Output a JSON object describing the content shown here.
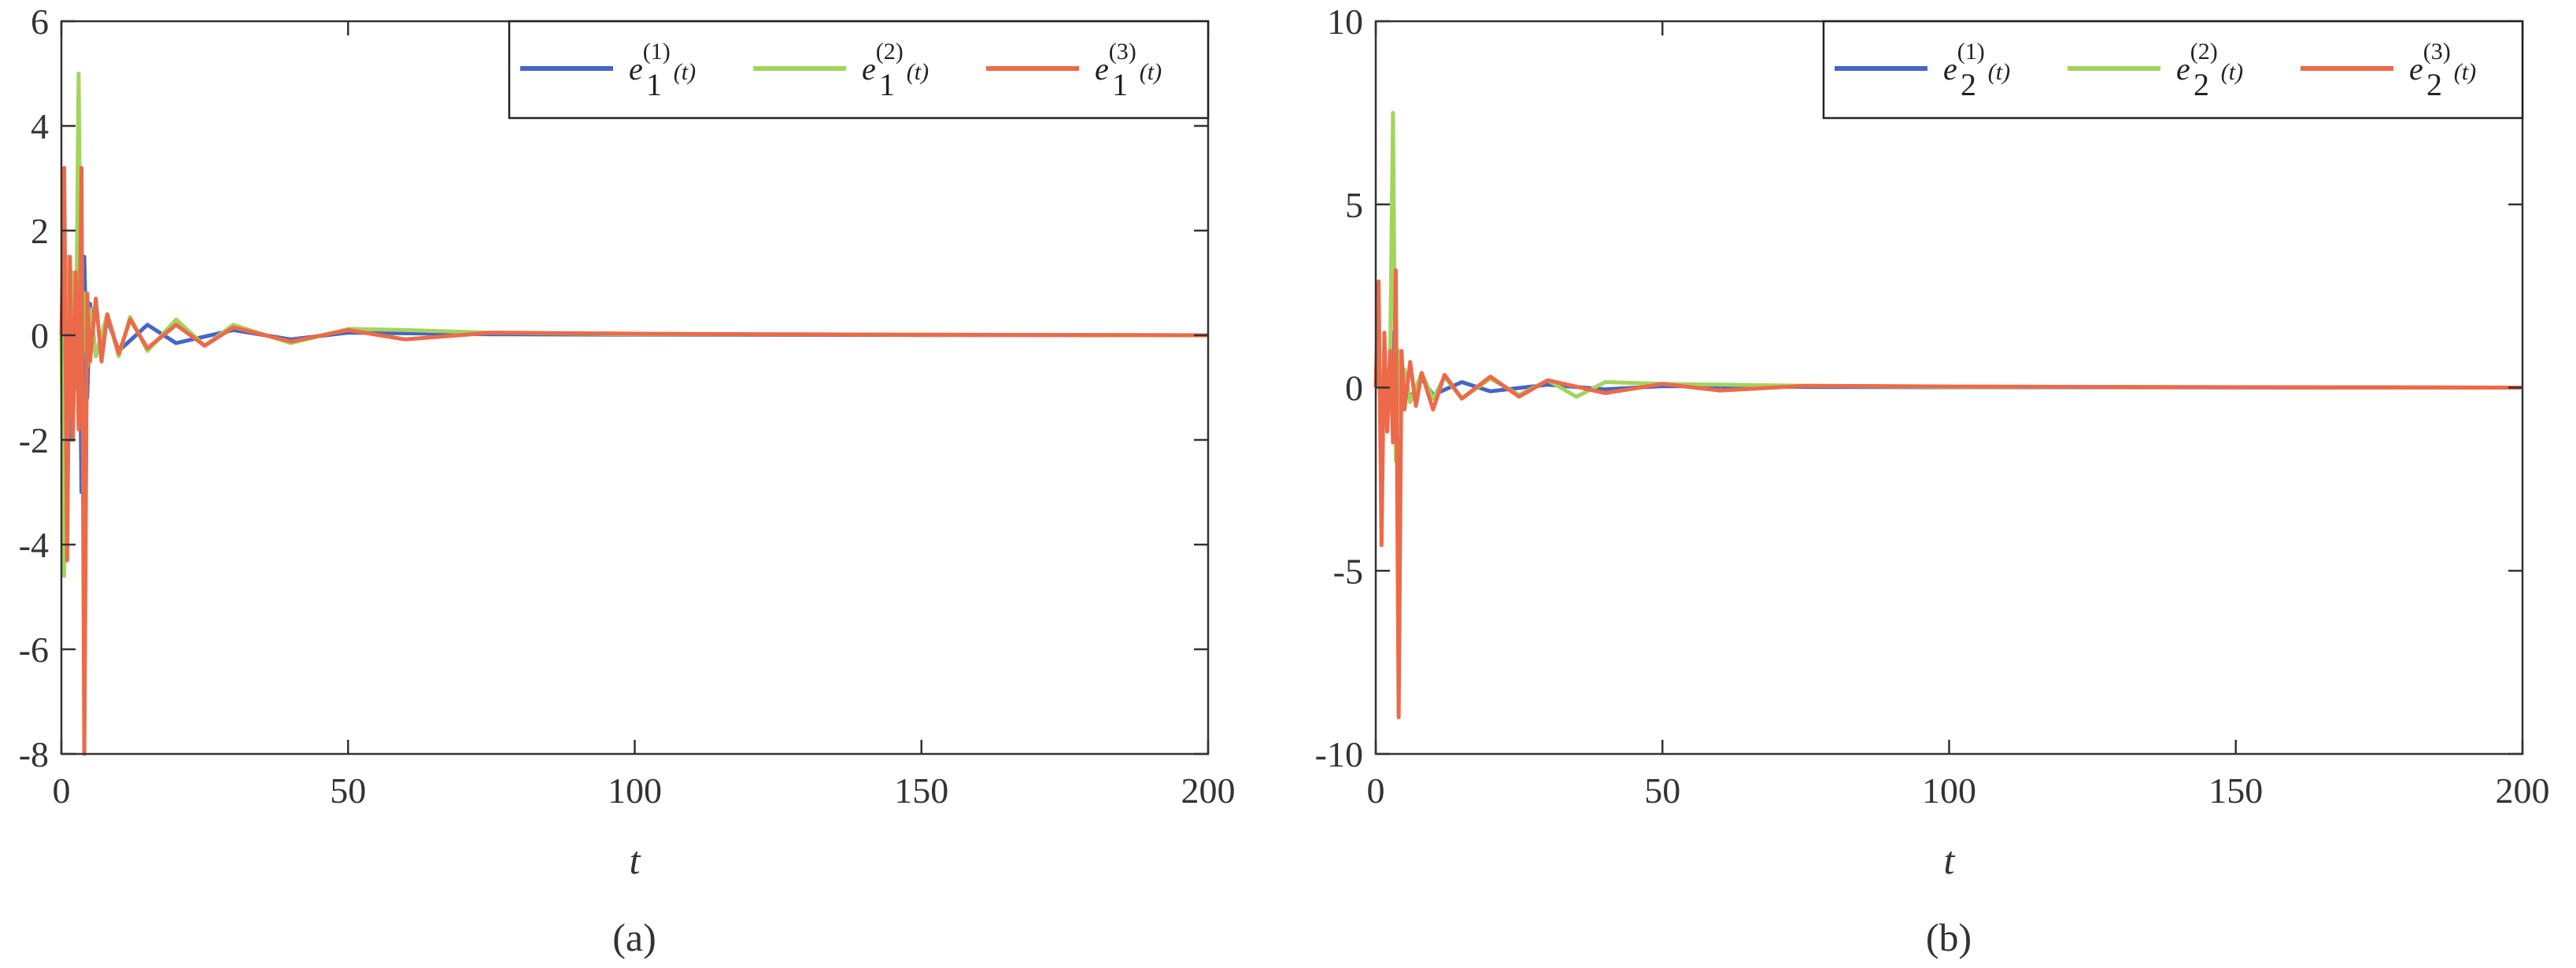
{
  "colors": {
    "series1": "#4466c4",
    "series2": "#a3d45e",
    "series3": "#ec6a4a",
    "axis": "#333333"
  },
  "chart_data": [
    {
      "type": "line",
      "caption": "(a)",
      "xlabel": "t",
      "ylabel": "",
      "xlim": [
        0,
        200
      ],
      "ylim": [
        -8,
        6
      ],
      "xticks": [
        "0",
        "50",
        "100",
        "150",
        "200"
      ],
      "yticks": [
        "-8",
        "-6",
        "-4",
        "-2",
        "0",
        "2",
        "4",
        "6"
      ],
      "grid": false,
      "legend_position": "top-right",
      "series": [
        {
          "name": "e_1^{(1)}(t)",
          "name_base": "e",
          "name_sup": "(1)",
          "name_sub": "1",
          "name_arg": "(t)",
          "x": [
            0,
            0.5,
            1,
            1.5,
            2,
            2.5,
            3,
            3.5,
            4,
            4.5,
            5,
            6,
            8,
            10,
            15,
            20,
            30,
            40,
            50,
            75,
            100,
            150,
            200
          ],
          "y": [
            0,
            -1.5,
            1.0,
            -2.0,
            1.2,
            -1.0,
            2.5,
            -3.0,
            1.5,
            -1.2,
            0.6,
            -0.4,
            0.3,
            -0.3,
            0.2,
            -0.15,
            0.1,
            -0.08,
            0.05,
            0.02,
            0.01,
            0.005,
            0
          ]
        },
        {
          "name": "e_1^{(2)}(t)",
          "name_base": "e",
          "name_sup": "(2)",
          "name_sub": "1",
          "name_arg": "(t)",
          "x": [
            0,
            0.5,
            1,
            1.5,
            2,
            2.5,
            3,
            3.5,
            4,
            4.5,
            5,
            6,
            8,
            10,
            12,
            15,
            20,
            25,
            30,
            40,
            50,
            60,
            75,
            100,
            150,
            200
          ],
          "y": [
            0,
            -4.6,
            1.5,
            -1.5,
            1.2,
            -0.8,
            5.0,
            -1.0,
            0.8,
            -0.6,
            0.5,
            -0.4,
            0.4,
            -0.4,
            0.35,
            -0.3,
            0.3,
            -0.2,
            0.2,
            -0.15,
            0.12,
            0.1,
            0.05,
            0.02,
            0.01,
            0
          ]
        },
        {
          "name": "e_1^{(3)}(t)",
          "name_base": "e",
          "name_sup": "(3)",
          "name_sub": "1",
          "name_arg": "(t)",
          "x": [
            0,
            0.5,
            1,
            1.5,
            2,
            2.5,
            3,
            3.5,
            4,
            4.5,
            5,
            6,
            7,
            8,
            10,
            12,
            15,
            20,
            25,
            30,
            40,
            50,
            60,
            75,
            100,
            125,
            150,
            200
          ],
          "y": [
            0,
            3.2,
            -4.3,
            1.5,
            -2.0,
            1.2,
            -1.8,
            3.2,
            -8.0,
            0.8,
            -0.5,
            0.7,
            -0.5,
            0.4,
            -0.35,
            0.3,
            -0.25,
            0.2,
            -0.2,
            0.15,
            -0.12,
            0.1,
            -0.08,
            0.05,
            0.03,
            0.02,
            0.01,
            0
          ]
        }
      ]
    },
    {
      "type": "line",
      "caption": "(b)",
      "xlabel": "t",
      "ylabel": "",
      "xlim": [
        0,
        200
      ],
      "ylim": [
        -10,
        10
      ],
      "xticks": [
        "0",
        "50",
        "100",
        "150",
        "200"
      ],
      "yticks": [
        "-10",
        "-5",
        "0",
        "5",
        "10"
      ],
      "grid": false,
      "legend_position": "top-right",
      "series": [
        {
          "name": "e_2^{(1)}(t)",
          "name_base": "e",
          "name_sup": "(1)",
          "name_sub": "2",
          "name_arg": "(t)",
          "x": [
            0,
            0.5,
            1,
            1.5,
            2,
            2.5,
            3,
            3.5,
            4,
            4.5,
            5,
            6,
            8,
            10,
            15,
            20,
            30,
            40,
            50,
            75,
            100,
            150,
            200
          ],
          "y": [
            0,
            1.5,
            -2.0,
            0.8,
            -1.0,
            0.6,
            1.5,
            -1.2,
            0.8,
            -0.5,
            0.3,
            -0.3,
            0.25,
            -0.2,
            0.15,
            -0.1,
            0.08,
            -0.05,
            0.04,
            0.02,
            0.01,
            0.005,
            0
          ]
        },
        {
          "name": "e_2^{(2)}(t)",
          "name_base": "e",
          "name_sup": "(2)",
          "name_sub": "2",
          "name_arg": "(t)",
          "x": [
            0,
            0.5,
            1,
            1.5,
            2,
            2.5,
            3,
            3.5,
            4,
            4.5,
            5,
            6,
            8,
            10,
            12,
            15,
            20,
            25,
            30,
            35,
            40,
            50,
            60,
            75,
            100,
            150,
            200
          ],
          "y": [
            0,
            1.2,
            -1.5,
            0.8,
            -1.0,
            0.6,
            7.5,
            -2.0,
            1.0,
            -0.6,
            0.5,
            -0.4,
            0.4,
            -0.3,
            0.3,
            -0.3,
            0.25,
            -0.2,
            0.2,
            -0.25,
            0.15,
            0.1,
            0.08,
            0.05,
            0.02,
            0.01,
            0
          ]
        },
        {
          "name": "e_2^{(3)}(t)",
          "name_base": "e",
          "name_sup": "(3)",
          "name_sub": "2",
          "name_arg": "(t)",
          "x": [
            0,
            0.5,
            1,
            1.5,
            2,
            2.5,
            3,
            3.5,
            4,
            4.5,
            5,
            6,
            7,
            8,
            10,
            12,
            15,
            20,
            25,
            30,
            40,
            50,
            60,
            75,
            100,
            150,
            200
          ],
          "y": [
            0,
            2.9,
            -4.3,
            1.5,
            -1.2,
            1.0,
            -1.5,
            3.2,
            -9.0,
            1.0,
            -0.6,
            0.7,
            -0.5,
            0.4,
            -0.6,
            0.35,
            -0.3,
            0.3,
            -0.25,
            0.2,
            -0.15,
            0.1,
            -0.08,
            0.05,
            0.03,
            0.01,
            0
          ]
        }
      ]
    }
  ]
}
